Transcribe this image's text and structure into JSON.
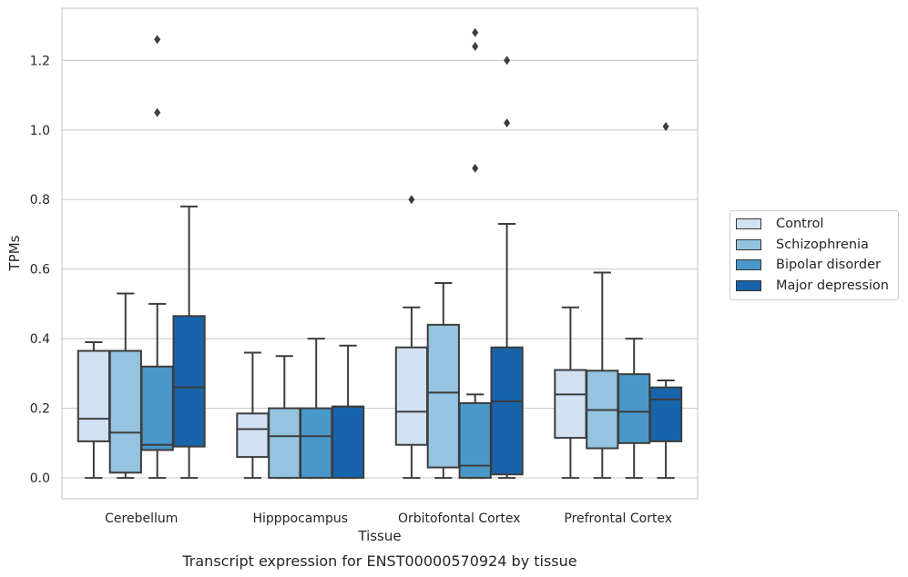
{
  "chart_data": {
    "type": "box",
    "title": "Transcript expression for ENST00000570924 by tissue",
    "xlabel": "Tissue",
    "ylabel": "TPMs",
    "ylim": [
      -0.06,
      1.35
    ],
    "yticks": [
      "0.0",
      "0.2",
      "0.4",
      "0.6",
      "0.8",
      "1.0",
      "1.2"
    ],
    "grid": "horizontal",
    "legend_position": "right",
    "categories": [
      "Cerebellum",
      "Hipppocampus",
      "Orbitofontal Cortex",
      "Prefrontal Cortex"
    ],
    "series": [
      {
        "name": "Control",
        "color": "#d0e1f2",
        "boxes": [
          {
            "min": 0.0,
            "q1": 0.105,
            "median": 0.17,
            "q3": 0.365,
            "max": 0.39,
            "outliers": []
          },
          {
            "min": 0.0,
            "q1": 0.06,
            "median": 0.14,
            "q3": 0.185,
            "max": 0.36,
            "outliers": []
          },
          {
            "min": 0.0,
            "q1": 0.095,
            "median": 0.19,
            "q3": 0.375,
            "max": 0.49,
            "outliers": [
              0.8
            ]
          },
          {
            "min": 0.0,
            "q1": 0.115,
            "median": 0.24,
            "q3": 0.31,
            "max": 0.49,
            "outliers": []
          }
        ]
      },
      {
        "name": "Schizophrenia",
        "color": "#94c4df",
        "boxes": [
          {
            "min": 0.0,
            "q1": 0.015,
            "median": 0.13,
            "q3": 0.365,
            "max": 0.53,
            "outliers": []
          },
          {
            "min": 0.0,
            "q1": 0.0,
            "median": 0.12,
            "q3": 0.2,
            "max": 0.35,
            "outliers": []
          },
          {
            "min": 0.0,
            "q1": 0.03,
            "median": 0.245,
            "q3": 0.44,
            "max": 0.56,
            "outliers": []
          },
          {
            "min": 0.0,
            "q1": 0.085,
            "median": 0.195,
            "q3": 0.308,
            "max": 0.59,
            "outliers": []
          }
        ]
      },
      {
        "name": "Bipolar disorder",
        "color": "#4a98c9",
        "boxes": [
          {
            "min": 0.0,
            "q1": 0.08,
            "median": 0.095,
            "q3": 0.32,
            "max": 0.5,
            "outliers": [
              1.05,
              1.26
            ]
          },
          {
            "min": 0.0,
            "q1": 0.0,
            "median": 0.12,
            "q3": 0.2,
            "max": 0.4,
            "outliers": []
          },
          {
            "min": 0.0,
            "q1": 0.0,
            "median": 0.035,
            "q3": 0.215,
            "max": 0.24,
            "outliers": [
              0.89,
              1.24,
              1.28
            ]
          },
          {
            "min": 0.0,
            "q1": 0.1,
            "median": 0.19,
            "q3": 0.298,
            "max": 0.4,
            "outliers": []
          }
        ]
      },
      {
        "name": "Major depression",
        "color": "#1764ab",
        "boxes": [
          {
            "min": 0.0,
            "q1": 0.09,
            "median": 0.26,
            "q3": 0.465,
            "max": 0.78,
            "outliers": []
          },
          {
            "min": 0.0,
            "q1": 0.0,
            "median": 0.205,
            "q3": 0.205,
            "max": 0.38,
            "outliers": []
          },
          {
            "min": 0.0,
            "q1": 0.01,
            "median": 0.22,
            "q3": 0.375,
            "max": 0.73,
            "outliers": [
              1.02,
              1.2
            ]
          },
          {
            "min": 0.0,
            "q1": 0.105,
            "median": 0.225,
            "q3": 0.26,
            "max": 0.28,
            "outliers": [
              1.01
            ]
          }
        ]
      }
    ]
  }
}
